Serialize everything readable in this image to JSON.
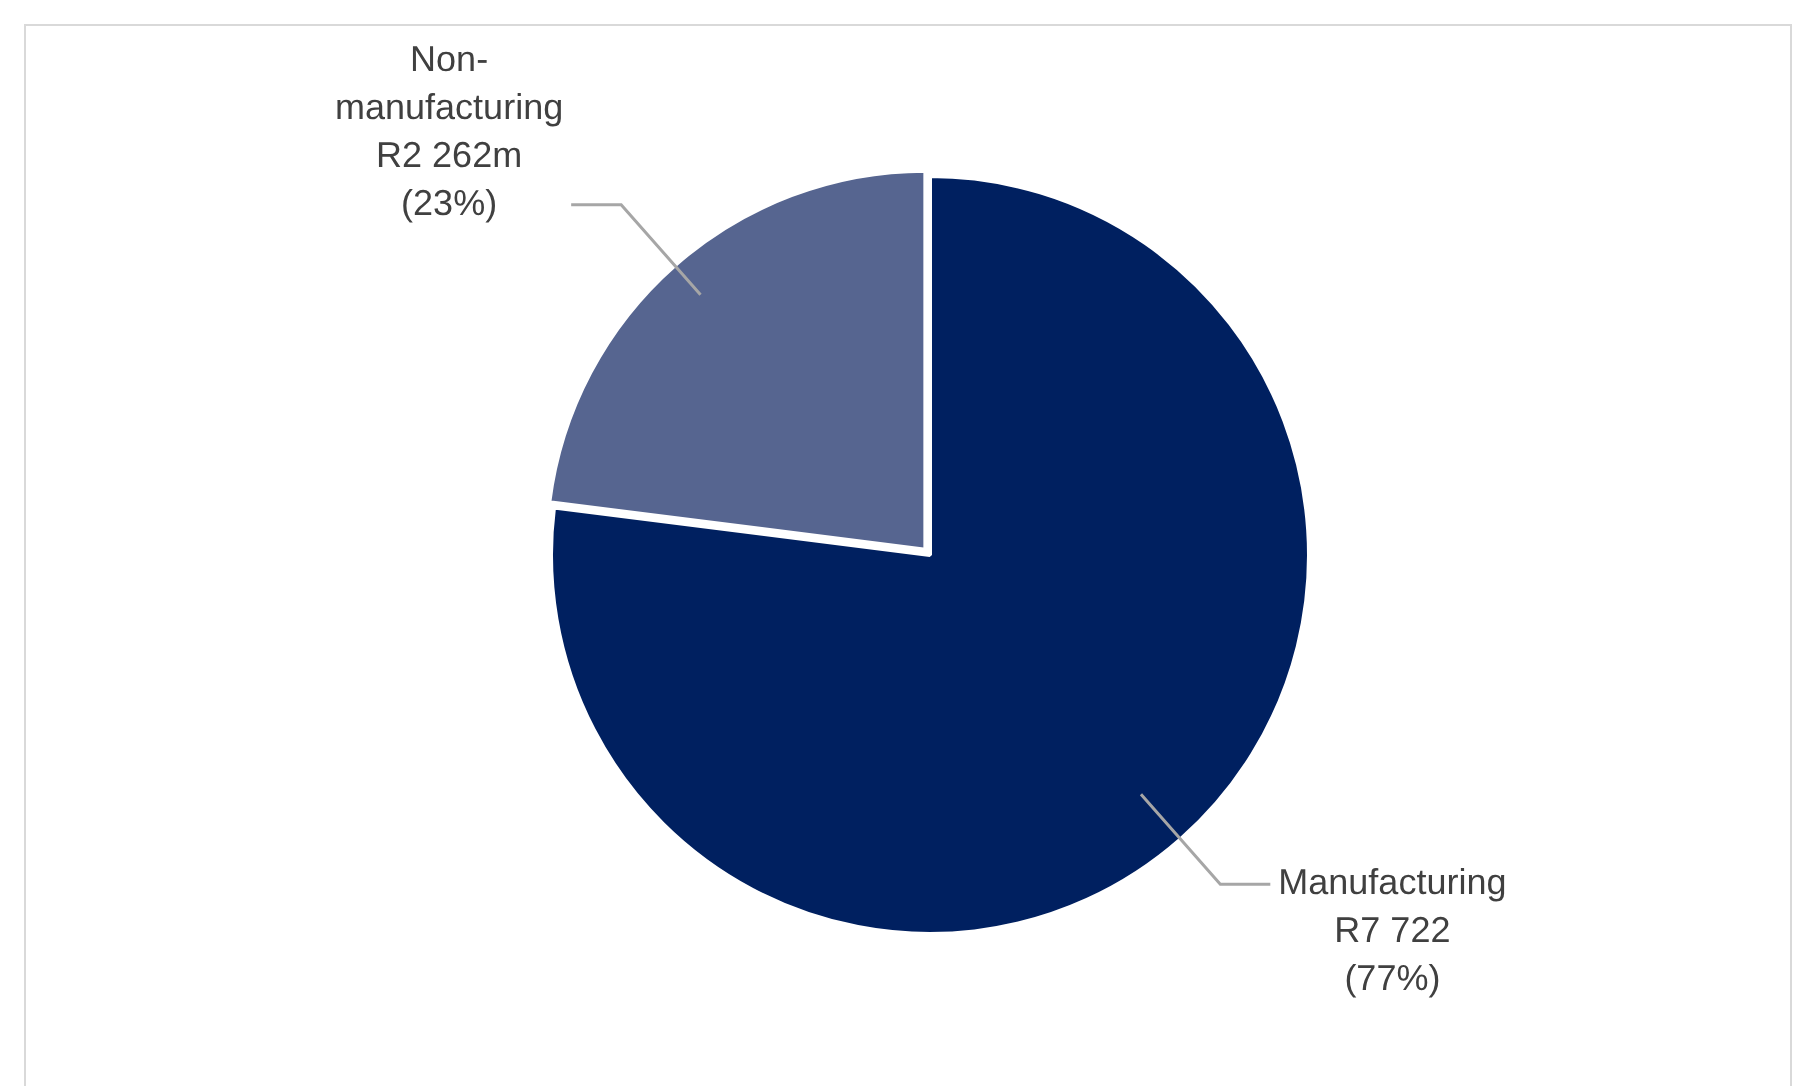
{
  "chart_data": {
    "type": "pie",
    "categories": [
      "Manufacturing",
      "Non-manufacturing"
    ],
    "values": [
      77,
      23
    ],
    "colors": [
      "#002060",
      "#566590"
    ],
    "value_labels": [
      "R7 722 (77%)",
      "R2 262m (23%)"
    ],
    "legend": false
  }
}
